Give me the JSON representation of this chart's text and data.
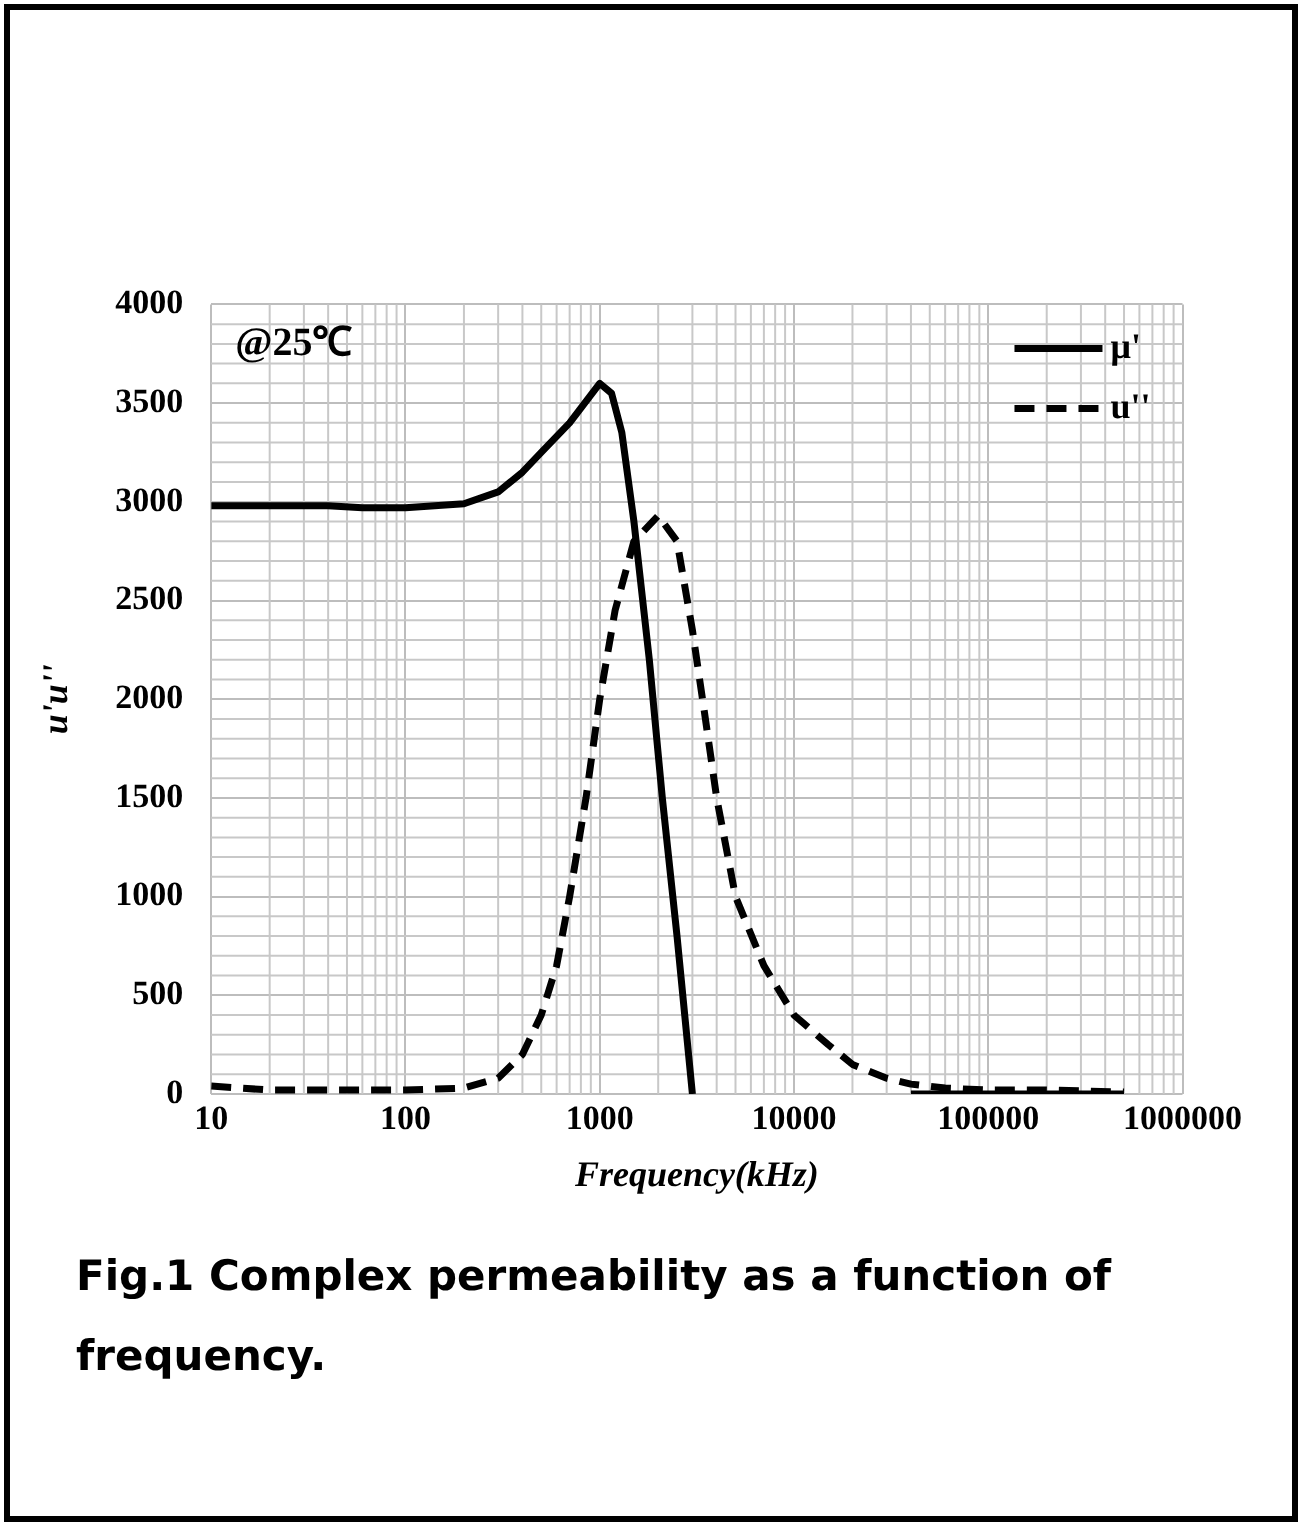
{
  "chart_data": {
    "type": "line",
    "xlabel": "Frequency(kHz)",
    "ylabel": "u'u''",
    "log": "x",
    "grid": true,
    "legend": "top right",
    "marker": "none",
    "xlim": [
      10,
      1000000
    ],
    "xticks": [
      10,
      100,
      1000,
      10000,
      100000,
      1000000
    ],
    "ylim": [
      0,
      4000
    ],
    "yticks": [
      0,
      500,
      1000,
      1500,
      2000,
      2500,
      3000,
      3500,
      4000
    ],
    "annotations": [
      "@25℃",
      "Fig.1 Complex permeability as a function of frequency."
    ],
    "series": [
      {
        "name": "μ'",
        "color": "#000000",
        "line_style": "solid",
        "x": [
          10,
          20,
          40,
          60,
          100,
          200,
          300,
          400,
          500,
          700,
          1000,
          1150,
          1300,
          1500,
          1800,
          2100,
          2500,
          3000,
          10000,
          40000,
          100000,
          500000
        ],
        "values": [
          2980,
          2980,
          2980,
          2970,
          2970,
          2990,
          3050,
          3150,
          3250,
          3400,
          3600,
          3550,
          3350,
          2900,
          2200,
          1500,
          800,
          0,
          null,
          0,
          0,
          0
        ]
      },
      {
        "name": "u''",
        "color": "#000000",
        "line_style": "dashed",
        "x": [
          10,
          20,
          50,
          100,
          200,
          300,
          400,
          500,
          600,
          700,
          850,
          1000,
          1200,
          1500,
          2000,
          2500,
          3000,
          3500,
          4000,
          5000,
          7000,
          10000,
          15000,
          20000,
          30000,
          40000,
          60000,
          100000,
          200000,
          500000
        ],
        "values": [
          40,
          20,
          20,
          20,
          30,
          80,
          200,
          400,
          650,
          1000,
          1500,
          2000,
          2450,
          2800,
          2930,
          2800,
          2350,
          1900,
          1500,
          1000,
          650,
          400,
          250,
          150,
          80,
          50,
          30,
          20,
          20,
          10
        ]
      }
    ]
  }
}
